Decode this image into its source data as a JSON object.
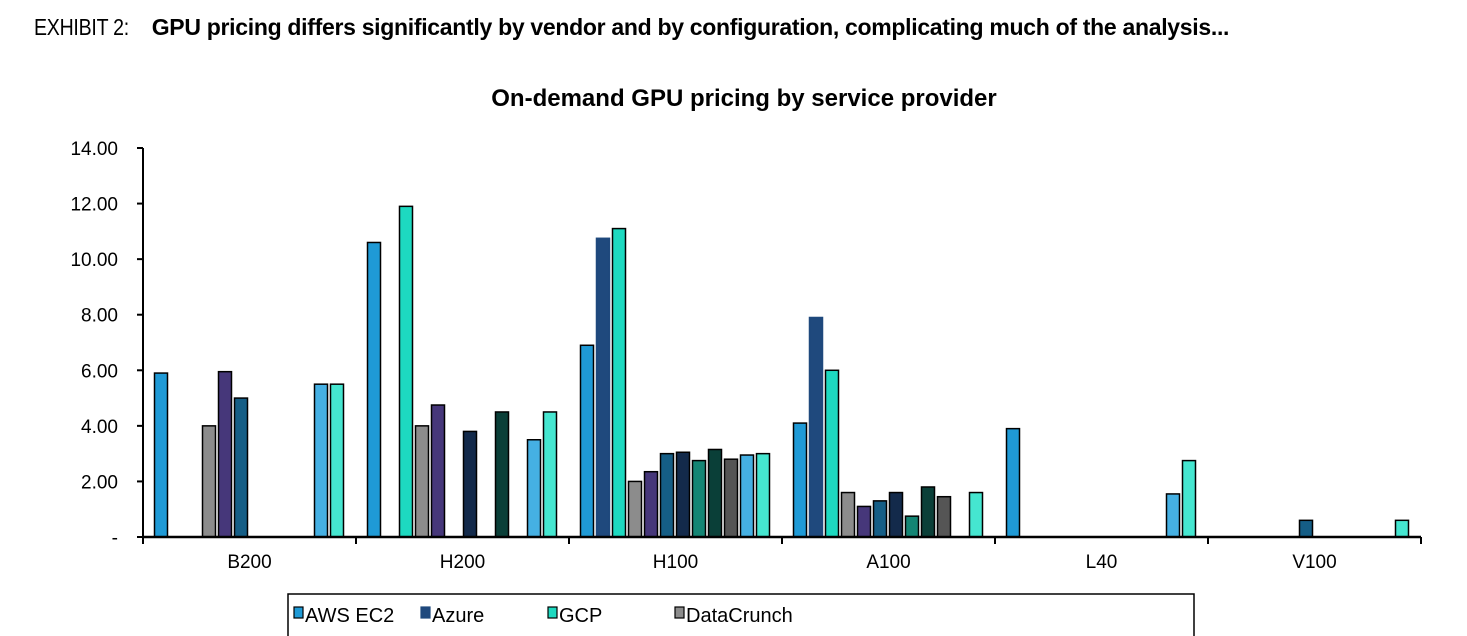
{
  "exhibit": {
    "lead": "EXHIBIT 2:",
    "headline": "GPU pricing differs significantly by vendor and by configuration, complicating much of the analysis..."
  },
  "chart_data": {
    "type": "bar",
    "title": "On-demand GPU pricing by service provider",
    "xlabel": "",
    "ylabel": "",
    "ylim": [
      0,
      14
    ],
    "yticks": [
      "-",
      "2.00",
      "4.00",
      "6.00",
      "8.00",
      "10.00",
      "12.00",
      "14.00"
    ],
    "grid": false,
    "legend_position": "bottom",
    "categories": [
      "B200",
      "H200",
      "H100",
      "A100",
      "L40",
      "V100"
    ],
    "series": [
      {
        "name": "AWS EC2",
        "color": "#1f9ad6",
        "values": [
          5.9,
          10.6,
          6.9,
          4.1,
          3.9,
          null
        ]
      },
      {
        "name": "Azure",
        "color": "#1f497d",
        "values": [
          null,
          null,
          10.75,
          7.9,
          null,
          null
        ]
      },
      {
        "name": "GCP",
        "color": "#1dd9c0",
        "values": [
          null,
          11.9,
          11.1,
          6.0,
          null,
          null
        ]
      },
      {
        "name": "DataCrunch",
        "color": "#8c8c8c",
        "values": [
          4.0,
          4.0,
          2.0,
          1.6,
          null,
          null
        ]
      },
      {
        "color": "#46377a",
        "values": [
          5.95,
          4.75,
          2.35,
          1.1,
          null,
          null
        ]
      },
      {
        "color": "#155e86",
        "values": [
          5.0,
          null,
          3.0,
          1.3,
          null,
          0.6
        ]
      },
      {
        "color": "#132a4b",
        "values": [
          null,
          3.8,
          3.05,
          1.6,
          null,
          null
        ]
      },
      {
        "color": "#148574",
        "values": [
          null,
          null,
          2.75,
          0.75,
          null,
          null
        ]
      },
      {
        "color": "#0a3f38",
        "values": [
          null,
          4.5,
          3.15,
          1.8,
          null,
          null
        ]
      },
      {
        "color": "#555555",
        "values": [
          null,
          null,
          2.8,
          1.45,
          null,
          null
        ]
      },
      {
        "color": "#45b0e3",
        "values": [
          5.5,
          3.5,
          2.95,
          null,
          1.55,
          null
        ]
      },
      {
        "color": "#45e6d0",
        "values": [
          5.5,
          4.5,
          3.0,
          1.6,
          2.75,
          0.6
        ]
      }
    ]
  }
}
